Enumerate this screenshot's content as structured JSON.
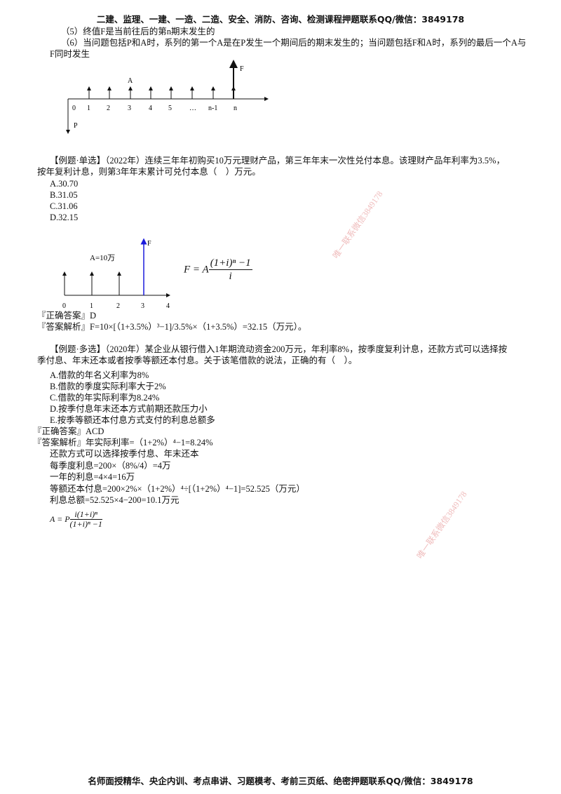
{
  "header": "二建、监理、一建、一造、二造、安全、消防、咨询、检测课程押题联系QQ/微信：3849178",
  "footer": "名师面授精华、央企内训、考点串讲、习题模考、考前三页纸、绝密押题联系QQ/微信：3849178",
  "notes": {
    "item5": "（5）终值F是当前往后的第n期末发生的",
    "item6a": "（6）当问题包括P和A时，系列的第一个A是在P发生一个期间后的期末发生的；当问题包括F和A时，系列的最后一个A与",
    "item6b": "F同时发生"
  },
  "diagram1": {
    "ticks": [
      "0",
      "1",
      "2",
      "3",
      "4",
      "5",
      "…",
      "n-1",
      "n"
    ],
    "label_A": "A",
    "label_F": "F",
    "label_P": "P"
  },
  "example1": {
    "stem_a": "【例题·单选】（2022年）连续三年年初购买10万元理财产品，第三年年末一次性兑付本息。该理财产品年利率为3.5%，",
    "stem_b": "按年复利计息，则第3年年末累计可兑付本息（　）万元。",
    "options": [
      "A.30.70",
      "B.31.05",
      "C.31.06",
      "D.32.15"
    ],
    "diagram": {
      "ticks": [
        "0",
        "1",
        "2",
        "3",
        "4"
      ],
      "label_A": "A=10万",
      "label_F": "F",
      "accent": "#1a1adc"
    },
    "formula": {
      "lhs": "F = A",
      "num": "(1+i)ⁿ −1",
      "den": "i"
    },
    "answer": "『正确答案』D",
    "analysis": "『答案解析』F=10×[（1+3.5%）³−1]/3.5%×（1+3.5%）=32.15（万元）。"
  },
  "example2": {
    "stem_a": "【例题·多选】（2020年）某企业从银行借入1年期流动资金200万元，年利率8%，按季度复利计息，还款方式可以选择按",
    "stem_b": "季付息、年末还本或者按季等额还本付息。关于该笔借款的说法，正确的有（　）。",
    "options": [
      "A.借款的年名义利率为8%",
      "B.借款的季度实际利率大于2%",
      "C.借款的年实际利率为8.24%",
      "D.按季付息年末还本方式前期还款压力小",
      "E.按季等额还本付息方式支付的利息总额多"
    ],
    "answer": "『正确答案』ACD",
    "analysis": [
      "『答案解析』年实际利率=（1+2%）⁴−1=8.24%",
      "还款方式可以选择按季付息、年末还本",
      "每季度利息=200×（8%/4）=4万",
      "一年的利息=4×4=16万",
      "等额还本付息=200×2%×（1+2%）⁴÷[（1+2%）⁴−1]=52.525（万元）",
      "利息总额=52.525×4−200=10.1万元"
    ],
    "formula": {
      "lhs": "A = P",
      "num": "i(1+i)ⁿ",
      "den": "(1+i)ⁿ −1"
    }
  },
  "watermark": "唯一联系微信3849178"
}
